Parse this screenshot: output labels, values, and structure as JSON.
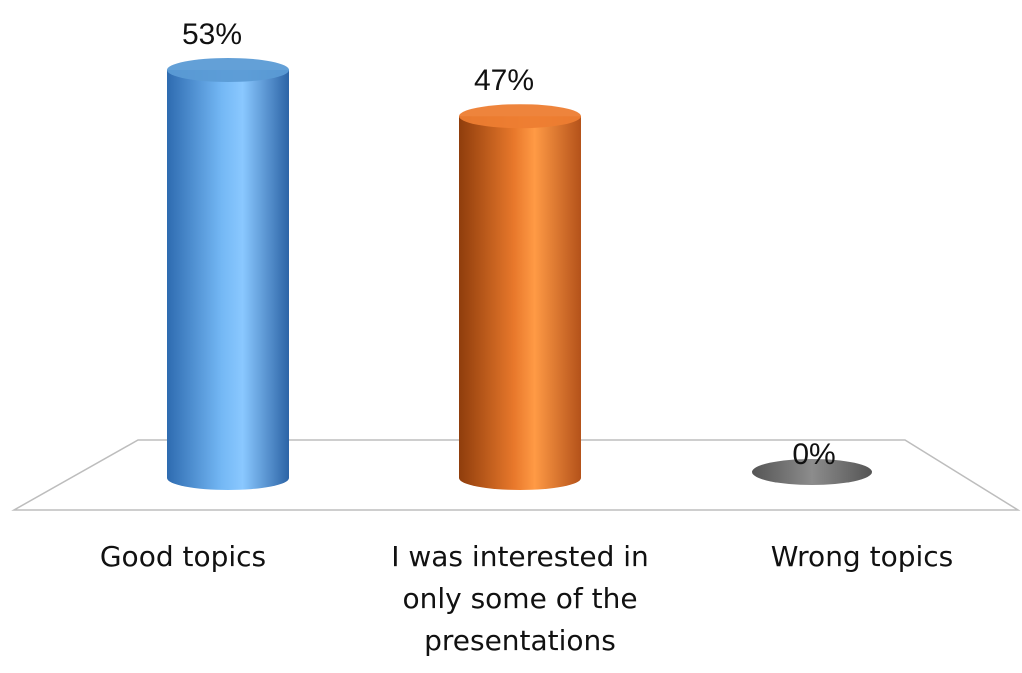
{
  "chart_data": {
    "type": "bar",
    "style": "3d-cylinder",
    "categories": [
      "Good topics",
      "I was interested in only some of the presentations",
      "Wrong topics"
    ],
    "values": [
      53,
      47,
      0
    ],
    "data_labels": [
      "53%",
      "47%",
      "0%"
    ],
    "colors": [
      "#5b9bd5",
      "#ed7d31",
      "#7f7f7f"
    ],
    "unit": "%",
    "ylim": [
      0,
      53
    ],
    "grid": false,
    "legend": "none"
  }
}
